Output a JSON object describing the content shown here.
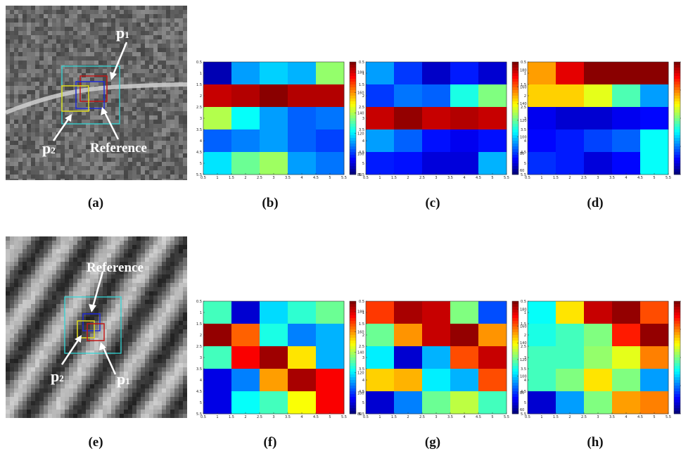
{
  "figure": {
    "captions": [
      "(a)",
      "(b)",
      "(c)",
      "(d)",
      "(e)",
      "(f)",
      "(g)",
      "(h)"
    ],
    "top_photo": {
      "labels": {
        "p1": "p",
        "p1_sub": "1",
        "p2": "p",
        "p2_sub": "2",
        "reference": "Reference"
      },
      "box_colors": {
        "reference": "#1f2bd8",
        "p1": "#c01616",
        "p2": "#e0dc1c",
        "search": "#33d6d6"
      }
    },
    "bottom_photo": {
      "labels": {
        "p1": "p",
        "p1_sub": "1",
        "p2": "p",
        "p2_sub": "2",
        "reference": "Reference"
      },
      "box_colors": {
        "reference": "#1f2bd8",
        "p1": "#c01616",
        "p2": "#e0dc1c",
        "search": "#33d6d6"
      }
    }
  },
  "chart_data": [
    {
      "id": "b",
      "type": "heatmap",
      "colormap": "jet",
      "x_ticks": [
        "0.5",
        "1",
        "1.5",
        "2",
        "2.5",
        "3",
        "3.5",
        "4",
        "4.5",
        "5",
        "5.5"
      ],
      "y_ticks": [
        "0.5",
        "1",
        "1.5",
        "2",
        "2.5",
        "3",
        "3.5",
        "4",
        "4.5",
        "5",
        "5.5"
      ],
      "colorbar": {
        "range": [
          80,
          190
        ],
        "ticks": [
          "180",
          "160",
          "140",
          "120",
          "100",
          "80"
        ]
      },
      "values": [
        [
          0.05,
          0.28,
          0.33,
          0.3,
          0.52
        ],
        [
          0.93,
          0.95,
          0.99,
          0.95,
          0.95
        ],
        [
          0.55,
          0.38,
          0.28,
          0.22,
          0.24
        ],
        [
          0.22,
          0.25,
          0.28,
          0.22,
          0.19
        ],
        [
          0.35,
          0.48,
          0.53,
          0.28,
          0.24
        ]
      ]
    },
    {
      "id": "c",
      "type": "heatmap",
      "colormap": "jet",
      "x_ticks": [
        "0.5",
        "1",
        "1.5",
        "2",
        "2.5",
        "3",
        "3.5",
        "4",
        "4.5",
        "5",
        "5.5"
      ],
      "y_ticks": [
        "0.5",
        "1",
        "1.5",
        "2",
        "2.5",
        "3",
        "3.5",
        "4",
        "4.5",
        "5",
        "5.5"
      ],
      "colorbar": {
        "range": [
          55,
          190
        ],
        "ticks": [
          "180",
          "160",
          "140",
          "120",
          "100",
          "80",
          "60"
        ]
      },
      "values": [
        [
          0.28,
          0.18,
          0.07,
          0.15,
          0.08
        ],
        [
          0.18,
          0.24,
          0.22,
          0.4,
          0.5
        ],
        [
          0.93,
          0.98,
          0.93,
          0.95,
          0.93
        ],
        [
          0.28,
          0.22,
          0.14,
          0.11,
          0.14
        ],
        [
          0.15,
          0.14,
          0.09,
          0.09,
          0.3
        ]
      ]
    },
    {
      "id": "d",
      "type": "heatmap",
      "colormap": "jet",
      "x_ticks": [
        "0.5",
        "1",
        "1.5",
        "2",
        "2.5",
        "3",
        "3.5",
        "4",
        "4.5",
        "5",
        "5.5"
      ],
      "y_ticks": [
        "0.5",
        "1",
        "1.5",
        "2",
        "2.5",
        "3",
        "3.5",
        "4",
        "4.5",
        "5",
        "5.5"
      ],
      "colorbar": {
        "range": [
          0,
          1
        ],
        "ticks": []
      },
      "values": [
        [
          0.72,
          0.9,
          0.99,
          0.99,
          0.99
        ],
        [
          0.67,
          0.67,
          0.6,
          0.45,
          0.28
        ],
        [
          0.11,
          0.08,
          0.08,
          0.11,
          0.13
        ],
        [
          0.13,
          0.15,
          0.19,
          0.22,
          0.38
        ],
        [
          0.17,
          0.15,
          0.09,
          0.13,
          0.38
        ]
      ]
    },
    {
      "id": "f",
      "type": "heatmap",
      "colormap": "jet",
      "x_ticks": [
        "0.5",
        "1",
        "1.5",
        "2",
        "2.5",
        "3",
        "3.5",
        "4",
        "4.5",
        "5",
        "5.5"
      ],
      "y_ticks": [
        "0.5",
        "1",
        "1.5",
        "2",
        "2.5",
        "3",
        "3.5",
        "4",
        "4.5",
        "5",
        "5.5"
      ],
      "colorbar": {
        "range": [
          80,
          190
        ],
        "ticks": [
          "180",
          "160",
          "140",
          "120",
          "100",
          "80"
        ]
      },
      "values": [
        [
          0.44,
          0.08,
          0.34,
          0.42,
          0.48
        ],
        [
          0.98,
          0.78,
          0.4,
          0.25,
          0.3
        ],
        [
          0.44,
          0.88,
          0.97,
          0.65,
          0.3
        ],
        [
          0.1,
          0.25,
          0.72,
          0.96,
          0.88
        ],
        [
          0.1,
          0.38,
          0.44,
          0.62,
          0.88
        ]
      ]
    },
    {
      "id": "g",
      "type": "heatmap",
      "colormap": "jet",
      "x_ticks": [
        "0.5",
        "1",
        "1.5",
        "2",
        "2.5",
        "3",
        "3.5",
        "4",
        "4.5",
        "5",
        "5.5"
      ],
      "y_ticks": [
        "0.5",
        "1",
        "1.5",
        "2",
        "2.5",
        "3",
        "3.5",
        "4",
        "4.5",
        "5",
        "5.5"
      ],
      "colorbar": {
        "range": [
          55,
          190
        ],
        "ticks": [
          "180",
          "160",
          "140",
          "120",
          "100",
          "80",
          "60"
        ]
      },
      "values": [
        [
          0.82,
          0.96,
          0.93,
          0.5,
          0.2
        ],
        [
          0.48,
          0.73,
          0.93,
          0.98,
          0.73
        ],
        [
          0.36,
          0.08,
          0.3,
          0.8,
          0.93
        ],
        [
          0.67,
          0.7,
          0.36,
          0.3,
          0.8
        ],
        [
          0.08,
          0.25,
          0.48,
          0.56,
          0.44
        ]
      ]
    },
    {
      "id": "h",
      "type": "heatmap",
      "colormap": "jet",
      "x_ticks": [
        "0.5",
        "1",
        "1.5",
        "2",
        "2.5",
        "3",
        "3.5",
        "4",
        "4.5",
        "5",
        "5.5"
      ],
      "y_ticks": [
        "0.5",
        "1",
        "1.5",
        "2",
        "2.5",
        "3",
        "3.5",
        "4",
        "4.5",
        "5",
        "5.5"
      ],
      "colorbar": {
        "range": [
          0,
          1
        ],
        "ticks": []
      },
      "values": [
        [
          0.38,
          0.65,
          0.93,
          0.98,
          0.8
        ],
        [
          0.4,
          0.44,
          0.5,
          0.85,
          0.98
        ],
        [
          0.44,
          0.44,
          0.52,
          0.6,
          0.75
        ],
        [
          0.44,
          0.5,
          0.65,
          0.5,
          0.28
        ],
        [
          0.08,
          0.28,
          0.5,
          0.72,
          0.75
        ]
      ]
    }
  ]
}
